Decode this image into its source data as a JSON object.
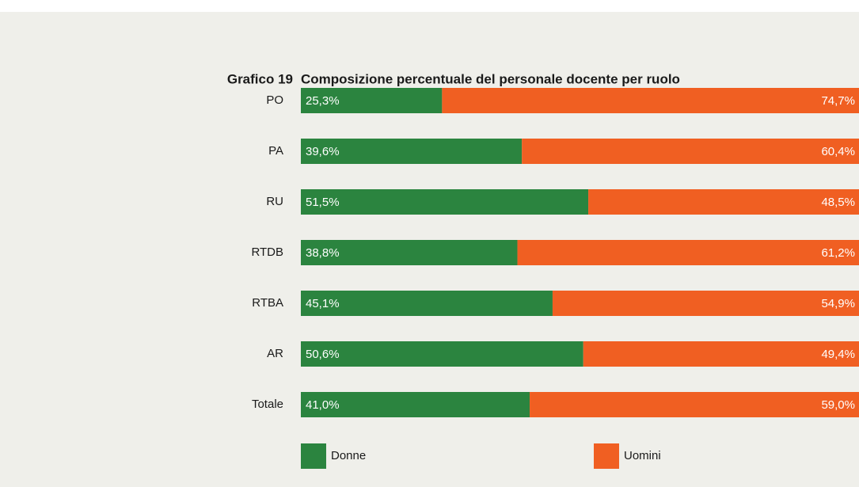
{
  "chart_data": {
    "type": "stacked_bar",
    "label": "Grafico 19",
    "title": "Composizione percentuale del personale docente per ruolo",
    "categories": [
      "PO",
      "PA",
      "RU",
      "RTDB",
      "RTBA",
      "AR",
      "Totale"
    ],
    "xlim": [
      0,
      100
    ],
    "series": [
      {
        "name": "Donne",
        "color": "#2b843f",
        "values": [
          25.3,
          39.6,
          51.5,
          38.8,
          45.1,
          50.6,
          41.0
        ],
        "value_labels": [
          "25,3%",
          "39,6%",
          "51,5%",
          "38,8%",
          "45,1%",
          "50,6%",
          "41,0%"
        ]
      },
      {
        "name": "Uomini",
        "color": "#f05f22",
        "values": [
          74.7,
          60.4,
          48.5,
          61.2,
          54.9,
          49.4,
          59.0
        ],
        "value_labels": [
          "74,7%",
          "60,4%",
          "48,5%",
          "61,2%",
          "54,9%",
          "49,4%",
          "59,0%"
        ]
      }
    ]
  }
}
